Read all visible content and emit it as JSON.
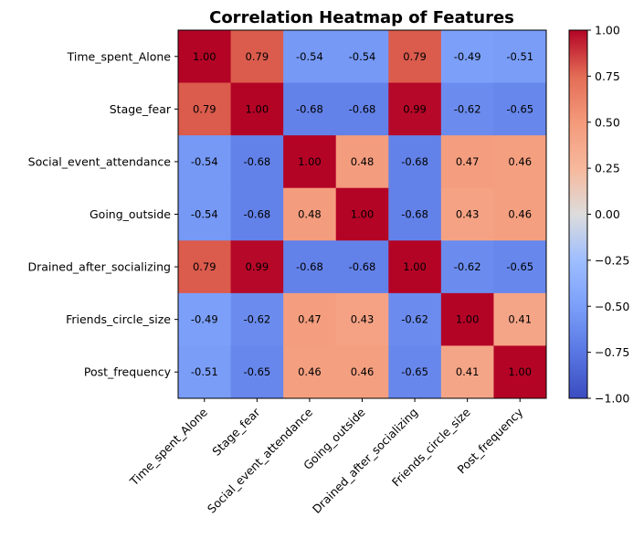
{
  "chart_data": {
    "type": "heatmap",
    "title": "Correlation Heatmap of Features",
    "xlabel": "",
    "ylabel": "",
    "colormap": "coolwarm",
    "vmin": -1.0,
    "vmax": 1.0,
    "grid": false,
    "legend": "colorbar-right",
    "labels": [
      "Time_spent_Alone",
      "Stage_fear",
      "Social_event_attendance",
      "Going_outside",
      "Drained_after_socializing",
      "Friends_circle_size",
      "Post_frequency"
    ],
    "matrix": [
      [
        1.0,
        0.79,
        -0.54,
        -0.54,
        0.79,
        -0.49,
        -0.51
      ],
      [
        0.79,
        1.0,
        -0.68,
        -0.68,
        0.99,
        -0.62,
        -0.65
      ],
      [
        -0.54,
        -0.68,
        1.0,
        0.48,
        -0.68,
        0.47,
        0.46
      ],
      [
        -0.54,
        -0.68,
        0.48,
        1.0,
        -0.68,
        0.43,
        0.46
      ],
      [
        0.79,
        0.99,
        -0.68,
        -0.68,
        1.0,
        -0.62,
        -0.65
      ],
      [
        -0.49,
        -0.62,
        0.47,
        0.43,
        -0.62,
        1.0,
        0.41
      ],
      [
        -0.51,
        -0.65,
        0.46,
        0.46,
        -0.65,
        0.41,
        1.0
      ]
    ],
    "colorbar_ticks": [
      "1.00",
      "0.75",
      "0.50",
      "0.25",
      "0.00",
      "−0.25",
      "−0.50",
      "−0.75",
      "−1.00"
    ],
    "colorbar_tick_values": [
      1.0,
      0.75,
      0.5,
      0.25,
      0.0,
      -0.25,
      -0.5,
      -0.75,
      -1.0
    ]
  }
}
